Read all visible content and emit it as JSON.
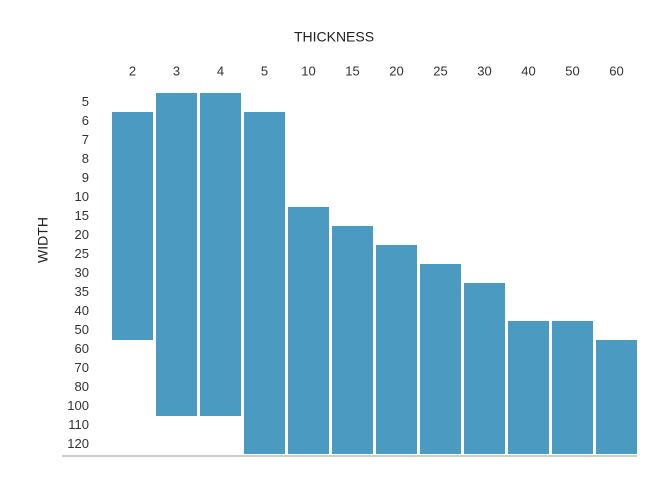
{
  "chart_data": {
    "type": "range_bar",
    "title": "THICKNESS",
    "y_label": "WIDTH",
    "categories": [
      "2",
      "3",
      "4",
      "5",
      "10",
      "15",
      "20",
      "25",
      "30",
      "40",
      "50",
      "60"
    ],
    "ycategories": [
      5,
      6,
      7,
      8,
      9,
      10,
      15,
      20,
      25,
      30,
      35,
      40,
      50,
      60,
      70,
      80,
      100,
      110,
      120
    ],
    "low": [
      6,
      5,
      5,
      6,
      15,
      20,
      25,
      30,
      35,
      50,
      50,
      60
    ],
    "high": [
      50,
      100,
      100,
      120,
      120,
      120,
      120,
      120,
      120,
      120,
      120,
      120
    ],
    "color": "#4a9ac1"
  }
}
